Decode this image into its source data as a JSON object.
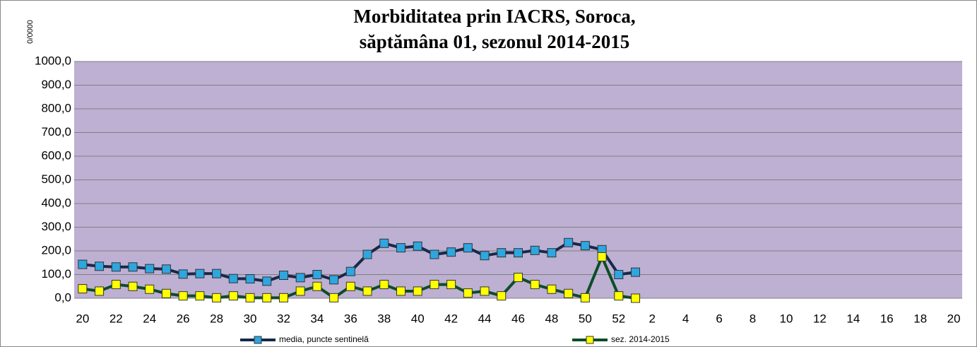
{
  "chart_data": {
    "type": "line",
    "title": [
      "Morbiditatea prin IACRS, Soroca,",
      "săptămâna 01, sezonul  2014-2015"
    ],
    "y_label": "0/0000",
    "categories": [
      20,
      null,
      22,
      null,
      24,
      null,
      26,
      null,
      28,
      null,
      30,
      null,
      32,
      null,
      34,
      null,
      36,
      null,
      38,
      null,
      40,
      null,
      42,
      null,
      44,
      null,
      46,
      null,
      48,
      null,
      50,
      null,
      52,
      null,
      2,
      null,
      4,
      null,
      6,
      null,
      8,
      null,
      10,
      null,
      12,
      null,
      14,
      null,
      16,
      null,
      18,
      null,
      20
    ],
    "series": [
      {
        "name": "media, puncte sentinelă",
        "color": "#17294a",
        "marker_color": "#2ea6e0",
        "values": [
          143,
          135,
          132,
          132,
          125,
          123,
          102,
          104,
          104,
          83,
          82,
          72,
          97,
          87,
          100,
          78,
          113,
          185,
          232,
          213,
          220,
          185,
          195,
          213,
          180,
          192,
          192,
          202,
          192,
          235,
          222,
          205,
          100,
          110,
          null,
          null,
          null,
          null,
          null,
          null,
          null,
          null,
          null,
          null,
          null,
          null,
          null,
          null,
          null,
          null,
          null,
          null,
          null
        ]
      },
      {
        "name": "sez. 2014-2015",
        "color": "#0d4d26",
        "marker_color": "#ffff00",
        "values": [
          40,
          30,
          58,
          50,
          38,
          20,
          10,
          10,
          2,
          10,
          2,
          2,
          2,
          30,
          50,
          2,
          50,
          30,
          58,
          30,
          30,
          58,
          58,
          22,
          30,
          10,
          88,
          58,
          38,
          20,
          2,
          175,
          10,
          0,
          null,
          null,
          null,
          null,
          null,
          null,
          null,
          null,
          null,
          null,
          null,
          null,
          null,
          null,
          null,
          null,
          null,
          null,
          null
        ]
      }
    ],
    "ylim": [
      0,
      1000
    ],
    "yticks": [
      {
        "value": 0,
        "label": "0,0"
      },
      {
        "value": 100,
        "label": "100,0"
      },
      {
        "value": 200,
        "label": "200,0"
      },
      {
        "value": 300,
        "label": "300,0"
      },
      {
        "value": 400,
        "label": "400,0"
      },
      {
        "value": 500,
        "label": "500,0"
      },
      {
        "value": 600,
        "label": "600,0"
      },
      {
        "value": 700,
        "label": "700,0"
      },
      {
        "value": 800,
        "label": "800,0"
      },
      {
        "value": 900,
        "label": "900,0"
      },
      {
        "value": 1000,
        "label": "1000,0"
      }
    ],
    "grid": true,
    "plot_background": "#bdb0d3",
    "legend": "bottom"
  }
}
